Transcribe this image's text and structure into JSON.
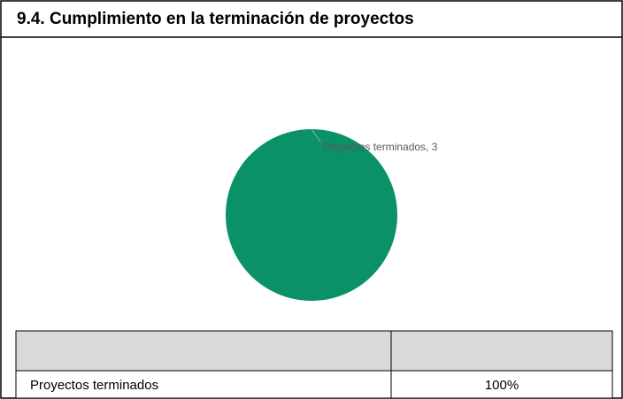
{
  "title": "9.4. Cumplimiento en la terminación de proyectos",
  "chart_data": {
    "type": "pie",
    "categories": [
      "Proyectos terminados"
    ],
    "values": [
      3
    ],
    "value_labels": [
      "Proyectos terminados, 3"
    ],
    "colors": [
      "#0a9168"
    ]
  },
  "table": {
    "rows": [
      [
        "Proyectos terminados",
        "100%"
      ]
    ]
  }
}
